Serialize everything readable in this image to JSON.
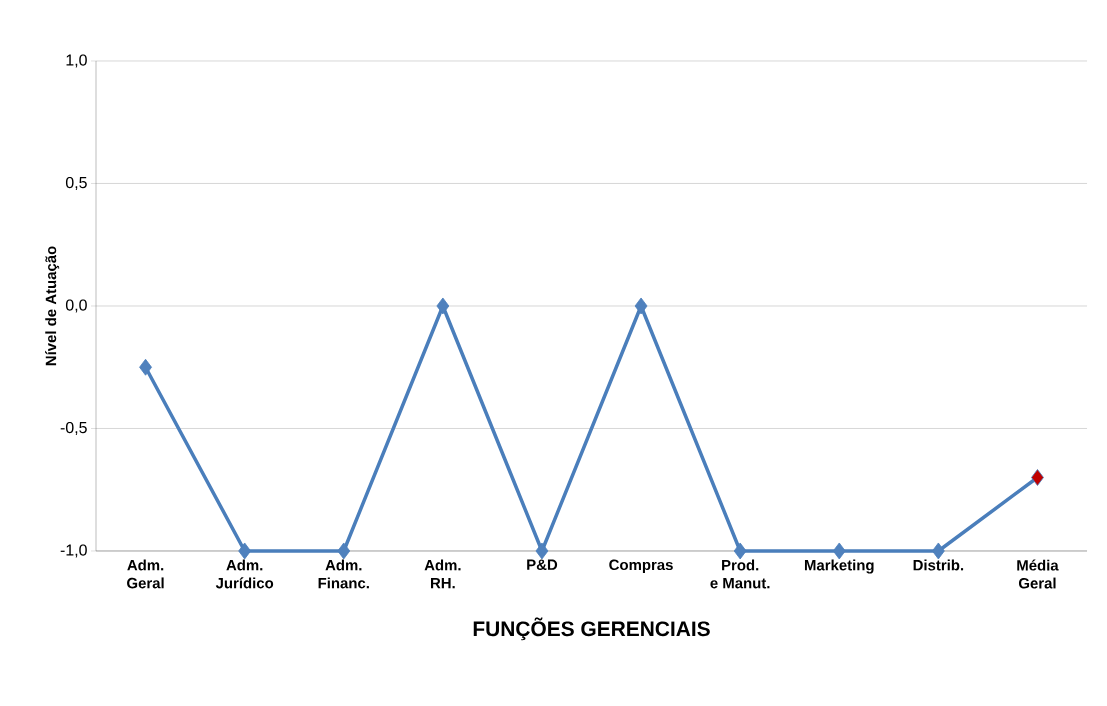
{
  "chart_data": {
    "type": "line",
    "xlabel": "FUNÇÕES GERENCIAIS",
    "ylabel": "Nível de Atuação",
    "categories": [
      "Adm. Geral",
      "Adm. Jurídico",
      "Adm. Financ.",
      "Adm. RH.",
      "P&D",
      "Compras",
      "Prod. e Manut.",
      "Marketing",
      "Distrib.",
      "Média Geral"
    ],
    "series": [
      {
        "color": "#4a7ebb",
        "colors": [
          "#4f81bd",
          "#4f81bd",
          "#4f81bd",
          "#4f81bd",
          "#4f81bd",
          "#4f81bd",
          "#4f81bd",
          "#4f81bd",
          "#4f81bd",
          "#c00000"
        ],
        "values": [
          -0.25,
          -1,
          -1,
          0,
          -1,
          0,
          -1,
          -1,
          -1,
          -0.7
        ]
      }
    ],
    "ylim": [
      -1,
      1
    ],
    "yticks": [
      {
        "value": -1,
        "label": "-1,0"
      },
      {
        "value": -0.5,
        "label": "-0,5"
      },
      {
        "value": 0,
        "label": "0,0"
      },
      {
        "value": 0.5,
        "label": "0,5"
      },
      {
        "value": 1,
        "label": "1,0"
      }
    ],
    "grid": "y",
    "marker": "diamond",
    "line_style": "solid"
  }
}
